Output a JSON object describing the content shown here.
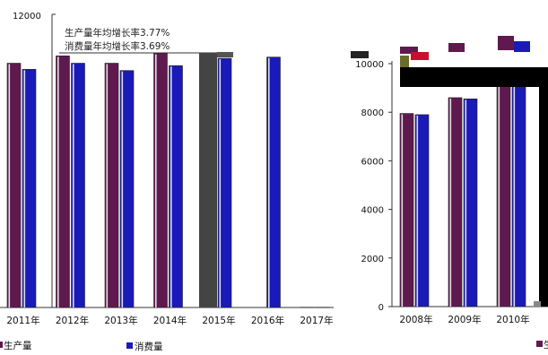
{
  "chart_data": [
    {
      "type": "bar",
      "panel": "left",
      "categories": [
        "2011年",
        "2012年",
        "2013年",
        "2014年",
        "2015年",
        "2016年",
        "2017年"
      ],
      "series": [
        {
          "name": "生产量",
          "values": [
            10000,
            10300,
            10000,
            10400,
            null,
            null,
            10
          ]
        },
        {
          "name": "消费量",
          "values": [
            9750,
            10000,
            9700,
            9900,
            10200,
            10250,
            10
          ]
        }
      ],
      "y_top_tick": "12000",
      "annotations": [
        "生产量年均增长率3.77%",
        "消费量年均增长率3.69%"
      ],
      "colors": {
        "生产量": "#5e1a4e",
        "消费量": "#1a1ab8"
      }
    },
    {
      "type": "bar",
      "panel": "right",
      "categories": [
        "2008年",
        "2009年",
        "2010年"
      ],
      "series": [
        {
          "name": "生产量",
          "values": [
            7950,
            8600,
            9200
          ]
        },
        {
          "name": "消费量",
          "values": [
            7900,
            8550,
            9150
          ]
        }
      ],
      "ylim": [
        0,
        10000
      ],
      "yticks": [
        "0",
        "2000",
        "4000",
        "6000",
        "8000",
        "10000"
      ],
      "colors": {
        "生产量": "#5e1a4e",
        "消费量": "#1a1ab8"
      }
    }
  ],
  "legend": {
    "items": [
      {
        "label": "生产量",
        "color": "#5e1a4e"
      },
      {
        "label": "消费量",
        "color": "#1a1ab8"
      }
    ]
  },
  "colors": {
    "production": "#5e1a4e",
    "consumption": "#1a1ab8",
    "axis": "#333333"
  }
}
